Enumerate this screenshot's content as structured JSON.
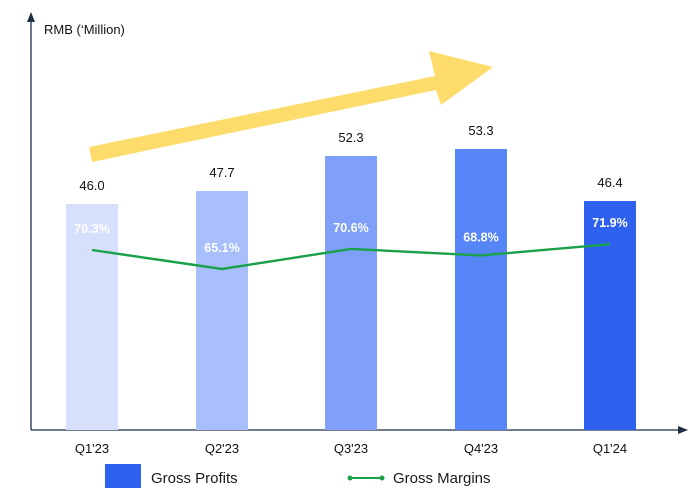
{
  "chart_data": {
    "type": "bar",
    "y_axis_label": "RMB (‘Million)",
    "categories": [
      "Q1'23",
      "Q2'23",
      "Q3'23",
      "Q4'23",
      "Q1'24"
    ],
    "series": [
      {
        "name": "Gross Profits",
        "type": "bar",
        "values": [
          46.0,
          47.7,
          52.3,
          53.3,
          46.4
        ],
        "value_labels": [
          "46.0",
          "47.7",
          "52.3",
          "53.3",
          "46.4"
        ]
      },
      {
        "name": "Gross Margins",
        "type": "line",
        "values": [
          70.3,
          65.1,
          70.6,
          68.8,
          71.9
        ],
        "value_labels": [
          "70.3%",
          "65.1%",
          "70.6%",
          "68.8%",
          "71.9%"
        ]
      }
    ],
    "bar_colors": [
      "#d6e0fc",
      "#a8bffb",
      "#7f9ff8",
      "#5585f6",
      "#2e62ee"
    ],
    "line_color": "#1aa14a",
    "arrow_color": "#fedc6b",
    "axis_color": "#1f2f44",
    "bar_ylim": [
      0,
      65
    ],
    "margin_ylim": [
      0,
      140
    ]
  },
  "legend": {
    "bar_label": "Gross Profits",
    "line_label": "Gross Margins",
    "bar_color": "#2e62ee",
    "line_color": "#1aa14a"
  }
}
